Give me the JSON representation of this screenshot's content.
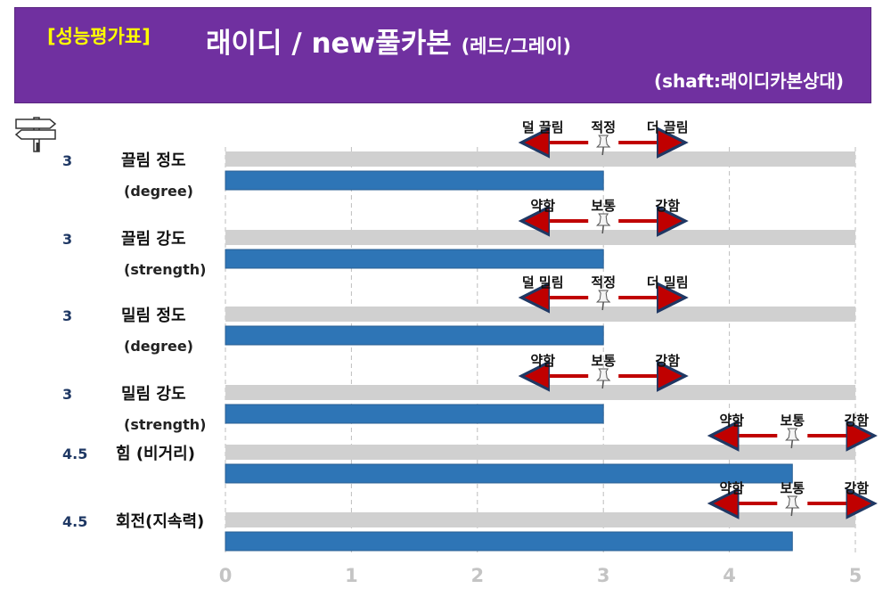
{
  "header": {
    "badge": "[성능평가표]",
    "title": "래이디 / new풀카본",
    "title_sub": "(레드/그레이)",
    "shaft": "(shaft:래이디카본상대)"
  },
  "colors": {
    "header_bg": "#7030a0",
    "badge": "#ffff00",
    "bar": "#2e75b6",
    "track": "#d0d0d0",
    "arrow": "#c00000",
    "value_text": "#1f3864"
  },
  "chart_data": {
    "type": "bar",
    "orientation": "horizontal",
    "xlim": [
      0,
      5
    ],
    "x_ticks": [
      0,
      1,
      2,
      3,
      4,
      5
    ],
    "grid": "vertical dashed",
    "categories": [
      "끌림 정도",
      "끌림 강도",
      "밀림 정도",
      "밀림 강도",
      "힘 (비거리)",
      "회전(지속력)"
    ],
    "category_sub": [
      "(degree)",
      "(strength)",
      "(degree)",
      "(strength)",
      "",
      ""
    ],
    "values": [
      3,
      3,
      3,
      3,
      4.5,
      4.5
    ],
    "value_labels": [
      "3",
      "3",
      "3",
      "3",
      "4.5",
      "4.5"
    ],
    "scales": [
      {
        "left": "덜 끌림",
        "center": "적정",
        "right": "더 끌림",
        "pin": 3
      },
      {
        "left": "약함",
        "center": "보통",
        "right": "강함",
        "pin": 3
      },
      {
        "left": "덜 밀림",
        "center": "적정",
        "right": "더 밀림",
        "pin": 3
      },
      {
        "left": "약함",
        "center": "보통",
        "right": "강함",
        "pin": 3
      },
      {
        "left": "약함",
        "center": "보통",
        "right": "강함",
        "pin": 4.5
      },
      {
        "left": "약함",
        "center": "보통",
        "right": "강함",
        "pin": 4.5
      }
    ]
  }
}
